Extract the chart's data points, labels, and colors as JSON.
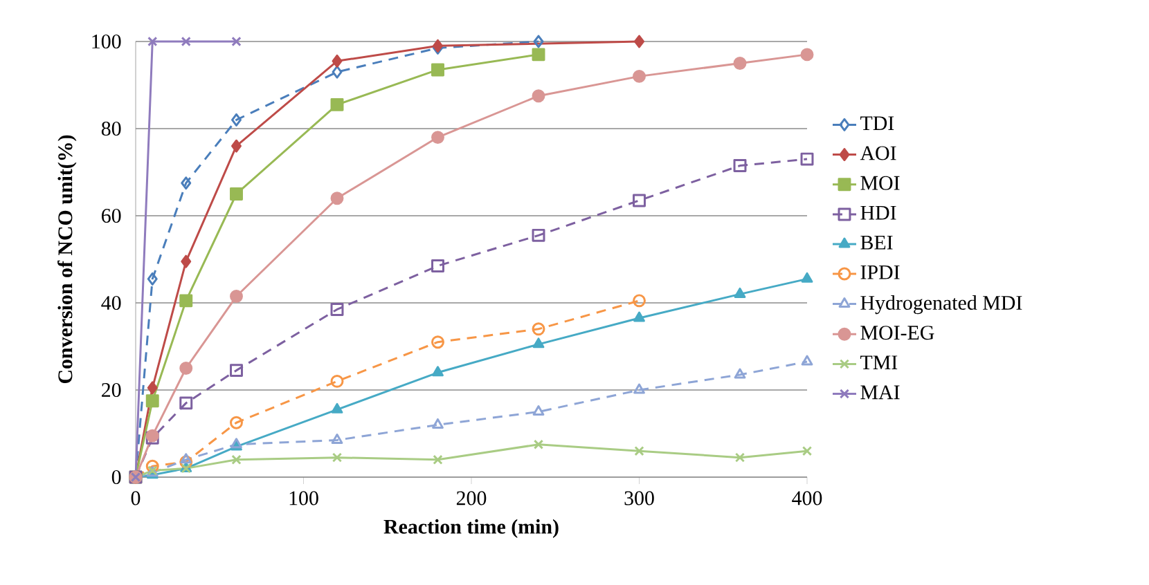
{
  "chart_data": {
    "type": "line",
    "xlabel": "Reaction time (min)",
    "ylabel": "Conversion of NCO unit(%)",
    "xlim": [
      0,
      400
    ],
    "ylim": [
      0,
      100
    ],
    "xticks": [
      0,
      100,
      200,
      300,
      400
    ],
    "yticks": [
      0,
      20,
      40,
      60,
      80,
      100
    ],
    "grid": "y",
    "legend": "right",
    "series": [
      {
        "name": "TDI",
        "color": "#4a7ebb",
        "marker": "diamond",
        "line_style": "dashed",
        "x": [
          0,
          10,
          30,
          60,
          120,
          180,
          240
        ],
        "values": [
          0,
          45.5,
          67.5,
          82,
          93,
          98.5,
          100
        ]
      },
      {
        "name": "AOI",
        "color": "#be4b48",
        "marker": "diamond",
        "line_style": "solid",
        "x": [
          0,
          10,
          30,
          60,
          120,
          180,
          300
        ],
        "values": [
          0,
          20.5,
          49.5,
          76,
          95.5,
          99,
          100
        ]
      },
      {
        "name": "MOI",
        "color": "#98b954",
        "marker": "square",
        "line_style": "solid",
        "x": [
          0,
          10,
          30,
          60,
          120,
          180,
          240
        ],
        "values": [
          0,
          17.5,
          40.5,
          65,
          85.5,
          93.5,
          97
        ]
      },
      {
        "name": "HDI",
        "color": "#7d60a0",
        "marker": "square",
        "line_style": "dashed",
        "x": [
          0,
          10,
          30,
          60,
          120,
          180,
          240,
          300,
          360,
          400
        ],
        "values": [
          0,
          9,
          17,
          24.5,
          38.5,
          48.5,
          55.5,
          63.5,
          71.5,
          73
        ]
      },
      {
        "name": "BEI",
        "color": "#46aac5",
        "marker": "triangle",
        "line_style": "solid",
        "x": [
          0,
          10,
          30,
          60,
          120,
          180,
          240,
          300,
          360,
          400
        ],
        "values": [
          0,
          0.5,
          2,
          7,
          15.5,
          24,
          30.5,
          36.5,
          42,
          45.5
        ]
      },
      {
        "name": "IPDI",
        "color": "#f79646",
        "marker": "circle",
        "line_style": "dashed",
        "x": [
          0,
          10,
          30,
          60,
          120,
          180,
          240,
          300
        ],
        "values": [
          0,
          2.5,
          3.5,
          12.5,
          22,
          31,
          34,
          40.5
        ]
      },
      {
        "name": "Hydrogenated MDI",
        "color": "#8ea5d6",
        "marker": "triangle",
        "line_style": "dashed",
        "x": [
          0,
          10,
          30,
          60,
          120,
          180,
          240,
          300,
          360,
          400
        ],
        "values": [
          0,
          1,
          4,
          7.5,
          8.5,
          12,
          15,
          20,
          23.5,
          26.5
        ]
      },
      {
        "name": "MOI-EG",
        "color": "#d99694",
        "marker": "circle",
        "line_style": "solid",
        "x": [
          0,
          10,
          30,
          60,
          120,
          180,
          240,
          300,
          360,
          400
        ],
        "values": [
          0,
          9.5,
          25,
          41.5,
          64,
          78,
          87.5,
          92,
          95,
          97
        ]
      },
      {
        "name": "TMI",
        "color": "#a9cc84",
        "marker": "cross",
        "line_style": "solid",
        "x": [
          0,
          10,
          30,
          60,
          120,
          180,
          240,
          300,
          360,
          400
        ],
        "values": [
          0,
          1.5,
          2,
          4,
          4.5,
          4,
          7.5,
          6,
          4.5,
          6
        ]
      },
      {
        "name": "MAI",
        "color": "#8f7bbd",
        "marker": "cross",
        "line_style": "solid",
        "x": [
          0,
          10,
          30,
          60
        ],
        "values": [
          0,
          100,
          100,
          100
        ]
      }
    ]
  }
}
